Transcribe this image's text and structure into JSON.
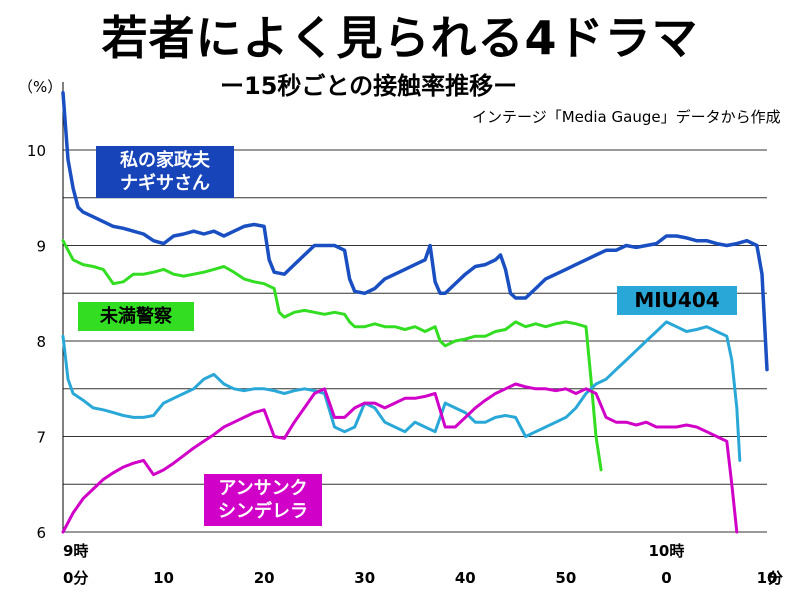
{
  "header": {
    "title": "若者によく見られる4ドラマ",
    "subtitle": "ー15秒ごとの接触率推移ー",
    "source": "インテージ「Media Gauge」データから作成"
  },
  "chart_data": {
    "type": "line",
    "unit_label": "（%）",
    "ylim": [
      6,
      10.5
    ],
    "y_ticks": [
      "6",
      "7",
      "8",
      "9",
      "10"
    ],
    "xlim": [
      0,
      70
    ],
    "x_ticks": [
      "0分",
      "10",
      "20",
      "30",
      "40",
      "50",
      "0",
      "10"
    ],
    "x_tick_positions": [
      0,
      10,
      20,
      30,
      40,
      50,
      60,
      70
    ],
    "x_unit": "分",
    "hour_labels": [
      {
        "text": "9時",
        "x": 0
      },
      {
        "text": "10時",
        "x": 60
      }
    ],
    "grid": true,
    "series": [
      {
        "name": "私の家政夫\nナギサさん",
        "color": "#1a4fc2",
        "points": [
          [
            0,
            10.6
          ],
          [
            0.5,
            9.9
          ],
          [
            1,
            9.6
          ],
          [
            1.5,
            9.4
          ],
          [
            2,
            9.35
          ],
          [
            3,
            9.3
          ],
          [
            4,
            9.25
          ],
          [
            5,
            9.2
          ],
          [
            6,
            9.18
          ],
          [
            7,
            9.15
          ],
          [
            8,
            9.12
          ],
          [
            9,
            9.05
          ],
          [
            10,
            9.02
          ],
          [
            11,
            9.1
          ],
          [
            12,
            9.12
          ],
          [
            13,
            9.15
          ],
          [
            14,
            9.12
          ],
          [
            15,
            9.15
          ],
          [
            16,
            9.1
          ],
          [
            17,
            9.15
          ],
          [
            18,
            9.2
          ],
          [
            19,
            9.22
          ],
          [
            20,
            9.2
          ],
          [
            20.5,
            8.85
          ],
          [
            21,
            8.72
          ],
          [
            22,
            8.7
          ],
          [
            23,
            8.8
          ],
          [
            24,
            8.9
          ],
          [
            25,
            9.0
          ],
          [
            26,
            9.0
          ],
          [
            27,
            9.0
          ],
          [
            28,
            8.95
          ],
          [
            28.5,
            8.65
          ],
          [
            29,
            8.52
          ],
          [
            30,
            8.5
          ],
          [
            31,
            8.55
          ],
          [
            32,
            8.65
          ],
          [
            33,
            8.7
          ],
          [
            34,
            8.75
          ],
          [
            35,
            8.8
          ],
          [
            36,
            8.85
          ],
          [
            36.5,
            9.0
          ],
          [
            37,
            8.62
          ],
          [
            37.5,
            8.5
          ],
          [
            38,
            8.5
          ],
          [
            39,
            8.6
          ],
          [
            40,
            8.7
          ],
          [
            41,
            8.78
          ],
          [
            42,
            8.8
          ],
          [
            43,
            8.85
          ],
          [
            43.5,
            8.9
          ],
          [
            44,
            8.75
          ],
          [
            44.5,
            8.5
          ],
          [
            45,
            8.45
          ],
          [
            46,
            8.45
          ],
          [
            47,
            8.55
          ],
          [
            48,
            8.65
          ],
          [
            49,
            8.7
          ],
          [
            50,
            8.75
          ],
          [
            51,
            8.8
          ],
          [
            52,
            8.85
          ],
          [
            53,
            8.9
          ],
          [
            54,
            8.95
          ],
          [
            55,
            8.95
          ],
          [
            56,
            9.0
          ],
          [
            57,
            8.98
          ],
          [
            58,
            9.0
          ],
          [
            59,
            9.02
          ],
          [
            60,
            9.1
          ],
          [
            61,
            9.1
          ],
          [
            62,
            9.08
          ],
          [
            63,
            9.05
          ],
          [
            64,
            9.05
          ],
          [
            65,
            9.02
          ],
          [
            66,
            9.0
          ],
          [
            67,
            9.02
          ],
          [
            68,
            9.05
          ],
          [
            69,
            9.0
          ],
          [
            69.5,
            8.7
          ],
          [
            70,
            7.7
          ]
        ]
      },
      {
        "name": "未満警察",
        "color": "#33dd22",
        "points": [
          [
            0,
            9.05
          ],
          [
            1,
            8.85
          ],
          [
            2,
            8.8
          ],
          [
            3,
            8.78
          ],
          [
            4,
            8.75
          ],
          [
            5,
            8.6
          ],
          [
            6,
            8.62
          ],
          [
            7,
            8.7
          ],
          [
            8,
            8.7
          ],
          [
            9,
            8.72
          ],
          [
            10,
            8.75
          ],
          [
            11,
            8.7
          ],
          [
            12,
            8.68
          ],
          [
            13,
            8.7
          ],
          [
            14,
            8.72
          ],
          [
            15,
            8.75
          ],
          [
            16,
            8.78
          ],
          [
            17,
            8.72
          ],
          [
            18,
            8.65
          ],
          [
            19,
            8.62
          ],
          [
            20,
            8.6
          ],
          [
            21,
            8.55
          ],
          [
            21.5,
            8.3
          ],
          [
            22,
            8.25
          ],
          [
            23,
            8.3
          ],
          [
            24,
            8.32
          ],
          [
            25,
            8.3
          ],
          [
            26,
            8.28
          ],
          [
            27,
            8.3
          ],
          [
            28,
            8.28
          ],
          [
            28.5,
            8.2
          ],
          [
            29,
            8.15
          ],
          [
            30,
            8.15
          ],
          [
            31,
            8.18
          ],
          [
            32,
            8.15
          ],
          [
            33,
            8.15
          ],
          [
            34,
            8.12
          ],
          [
            35,
            8.15
          ],
          [
            36,
            8.1
          ],
          [
            37,
            8.15
          ],
          [
            37.5,
            8.0
          ],
          [
            38,
            7.95
          ],
          [
            39,
            8.0
          ],
          [
            40,
            8.02
          ],
          [
            41,
            8.05
          ],
          [
            42,
            8.05
          ],
          [
            43,
            8.1
          ],
          [
            44,
            8.12
          ],
          [
            45,
            8.2
          ],
          [
            46,
            8.15
          ],
          [
            47,
            8.18
          ],
          [
            48,
            8.15
          ],
          [
            49,
            8.18
          ],
          [
            50,
            8.2
          ],
          [
            51,
            8.18
          ],
          [
            52,
            8.15
          ],
          [
            52.5,
            7.6
          ],
          [
            53,
            7.0
          ],
          [
            53.5,
            6.65
          ]
        ]
      },
      {
        "name": "MIU404",
        "color": "#29a8d8",
        "points": [
          [
            0,
            8.05
          ],
          [
            0.5,
            7.6
          ],
          [
            1,
            7.45
          ],
          [
            2,
            7.38
          ],
          [
            3,
            7.3
          ],
          [
            4,
            7.28
          ],
          [
            5,
            7.25
          ],
          [
            6,
            7.22
          ],
          [
            7,
            7.2
          ],
          [
            8,
            7.2
          ],
          [
            9,
            7.22
          ],
          [
            10,
            7.35
          ],
          [
            11,
            7.4
          ],
          [
            12,
            7.45
          ],
          [
            13,
            7.5
          ],
          [
            14,
            7.6
          ],
          [
            15,
            7.65
          ],
          [
            16,
            7.55
          ],
          [
            17,
            7.5
          ],
          [
            18,
            7.48
          ],
          [
            19,
            7.5
          ],
          [
            20,
            7.5
          ],
          [
            21,
            7.48
          ],
          [
            22,
            7.45
          ],
          [
            23,
            7.48
          ],
          [
            24,
            7.5
          ],
          [
            25,
            7.48
          ],
          [
            26,
            7.45
          ],
          [
            27,
            7.1
          ],
          [
            28,
            7.05
          ],
          [
            29,
            7.1
          ],
          [
            30,
            7.35
          ],
          [
            31,
            7.3
          ],
          [
            32,
            7.15
          ],
          [
            33,
            7.1
          ],
          [
            34,
            7.05
          ],
          [
            35,
            7.15
          ],
          [
            36,
            7.1
          ],
          [
            37,
            7.05
          ],
          [
            38,
            7.35
          ],
          [
            39,
            7.3
          ],
          [
            40,
            7.25
          ],
          [
            41,
            7.15
          ],
          [
            42,
            7.15
          ],
          [
            43,
            7.2
          ],
          [
            44,
            7.22
          ],
          [
            45,
            7.2
          ],
          [
            46,
            7.0
          ],
          [
            47,
            7.05
          ],
          [
            48,
            7.1
          ],
          [
            49,
            7.15
          ],
          [
            50,
            7.2
          ],
          [
            51,
            7.3
          ],
          [
            52,
            7.45
          ],
          [
            53,
            7.55
          ],
          [
            54,
            7.6
          ],
          [
            55,
            7.7
          ],
          [
            56,
            7.8
          ],
          [
            57,
            7.9
          ],
          [
            58,
            8.0
          ],
          [
            59,
            8.1
          ],
          [
            60,
            8.2
          ],
          [
            61,
            8.15
          ],
          [
            62,
            8.1
          ],
          [
            63,
            8.12
          ],
          [
            64,
            8.15
          ],
          [
            65,
            8.1
          ],
          [
            66,
            8.05
          ],
          [
            66.5,
            7.8
          ],
          [
            67,
            7.3
          ],
          [
            67.3,
            6.75
          ]
        ]
      },
      {
        "name": "アンサンク\nシンデレラ",
        "color": "#d000c8",
        "points": [
          [
            0,
            6.0
          ],
          [
            1,
            6.2
          ],
          [
            2,
            6.35
          ],
          [
            3,
            6.45
          ],
          [
            4,
            6.55
          ],
          [
            5,
            6.62
          ],
          [
            6,
            6.68
          ],
          [
            7,
            6.72
          ],
          [
            8,
            6.75
          ],
          [
            9,
            6.6
          ],
          [
            10,
            6.65
          ],
          [
            11,
            6.72
          ],
          [
            12,
            6.8
          ],
          [
            13,
            6.88
          ],
          [
            14,
            6.95
          ],
          [
            15,
            7.02
          ],
          [
            16,
            7.1
          ],
          [
            17,
            7.15
          ],
          [
            18,
            7.2
          ],
          [
            19,
            7.25
          ],
          [
            20,
            7.28
          ],
          [
            21,
            7.0
          ],
          [
            22,
            6.98
          ],
          [
            23,
            7.15
          ],
          [
            24,
            7.3
          ],
          [
            25,
            7.45
          ],
          [
            26,
            7.5
          ],
          [
            27,
            7.2
          ],
          [
            28,
            7.2
          ],
          [
            29,
            7.3
          ],
          [
            30,
            7.35
          ],
          [
            31,
            7.35
          ],
          [
            32,
            7.3
          ],
          [
            33,
            7.35
          ],
          [
            34,
            7.4
          ],
          [
            35,
            7.4
          ],
          [
            36,
            7.42
          ],
          [
            37,
            7.45
          ],
          [
            38,
            7.1
          ],
          [
            39,
            7.1
          ],
          [
            40,
            7.2
          ],
          [
            41,
            7.3
          ],
          [
            42,
            7.38
          ],
          [
            43,
            7.45
          ],
          [
            44,
            7.5
          ],
          [
            45,
            7.55
          ],
          [
            46,
            7.52
          ],
          [
            47,
            7.5
          ],
          [
            48,
            7.5
          ],
          [
            49,
            7.48
          ],
          [
            50,
            7.5
          ],
          [
            51,
            7.45
          ],
          [
            52,
            7.5
          ],
          [
            53,
            7.45
          ],
          [
            54,
            7.2
          ],
          [
            55,
            7.15
          ],
          [
            56,
            7.15
          ],
          [
            57,
            7.12
          ],
          [
            58,
            7.15
          ],
          [
            59,
            7.1
          ],
          [
            60,
            7.1
          ],
          [
            61,
            7.1
          ],
          [
            62,
            7.12
          ],
          [
            63,
            7.1
          ],
          [
            64,
            7.05
          ],
          [
            65,
            7.0
          ],
          [
            66,
            6.95
          ],
          [
            66.5,
            6.5
          ],
          [
            67,
            6.0
          ]
        ]
      }
    ]
  }
}
